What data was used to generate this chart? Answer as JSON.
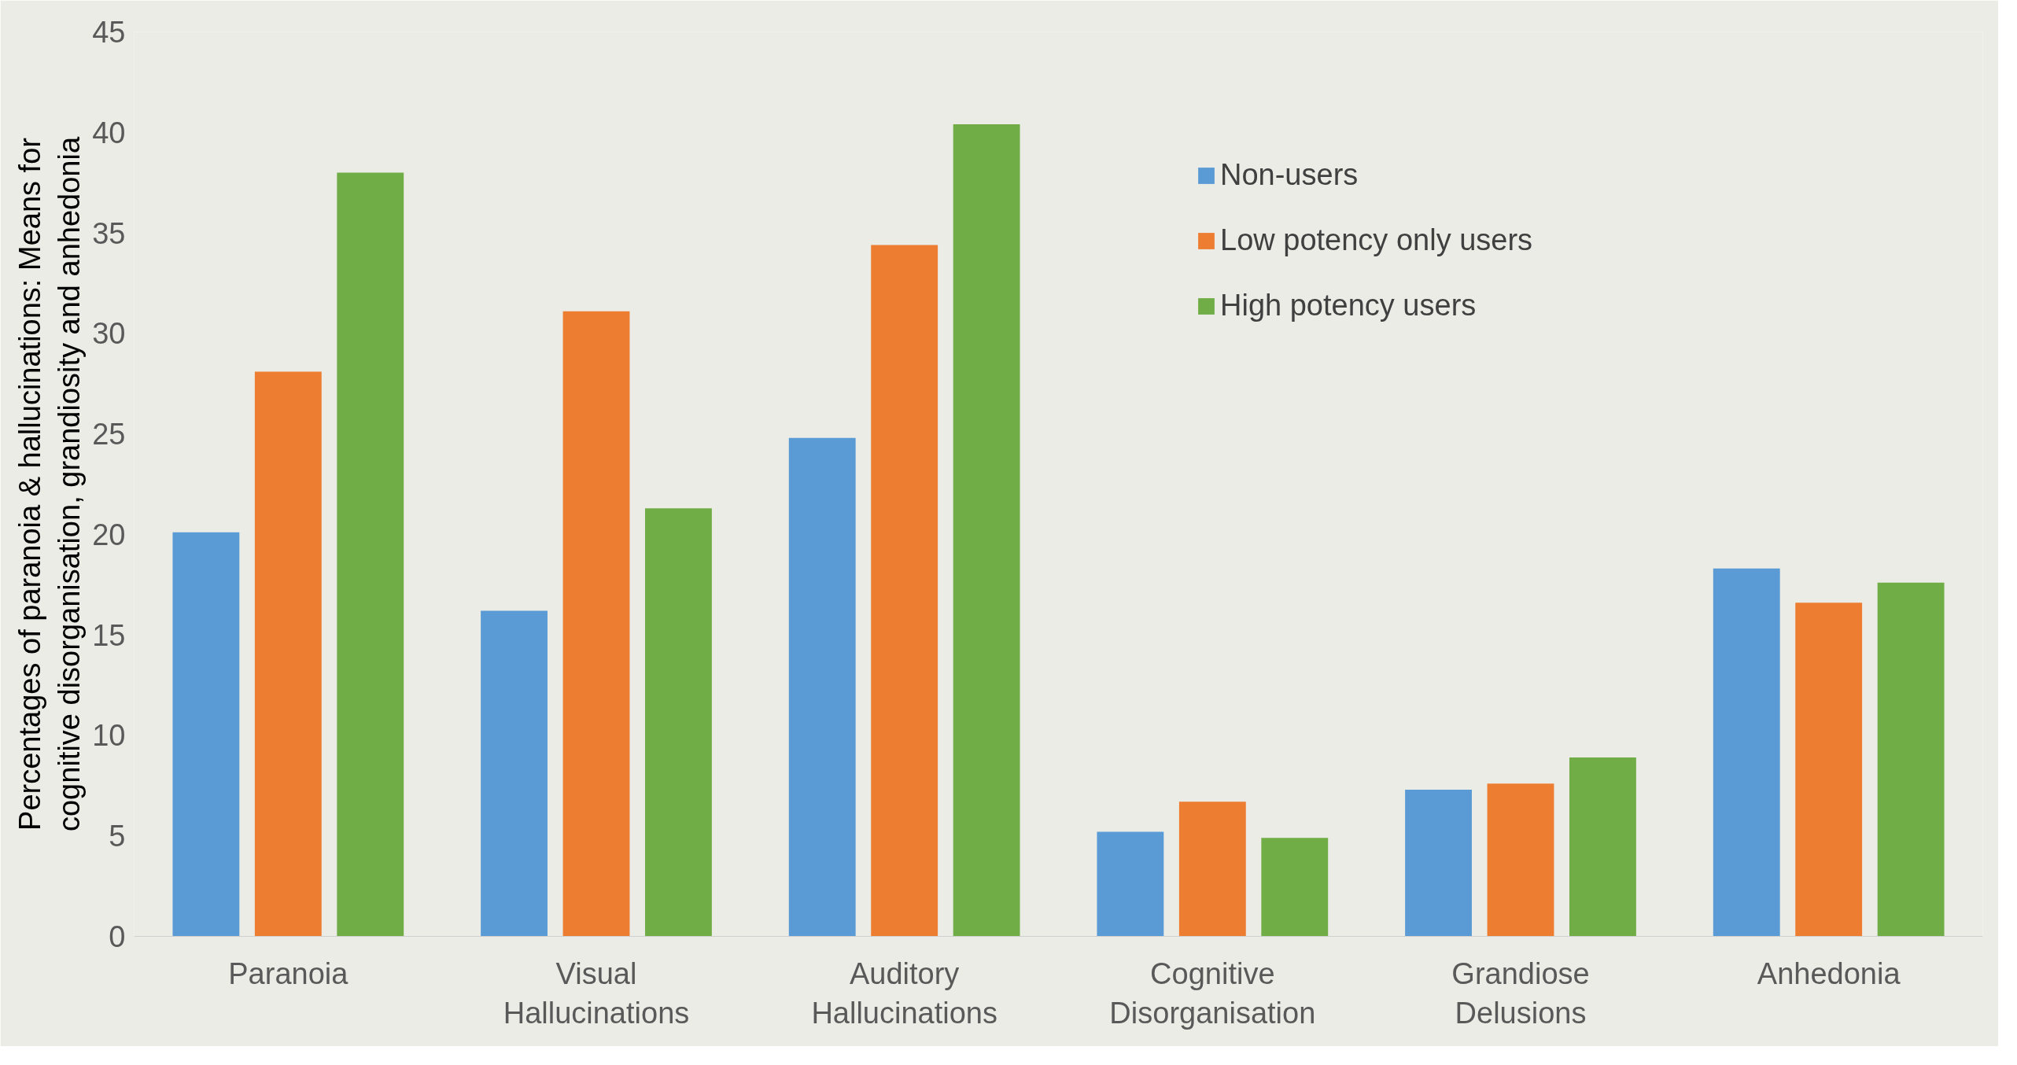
{
  "chart_data": {
    "type": "bar",
    "ylabel": "Percentages of paranoia & hallucinations: Means for cognitive disorganisation, grandiosity and anhedonia",
    "categories": [
      "Paranoia",
      "Visual Hallucinations",
      "Auditory Hallucinations",
      "Cognitive Disorganisation",
      "Grandiose Delusions",
      "Anhedonia"
    ],
    "series": [
      {
        "name": "Non-users",
        "color": "#5b9bd5",
        "values": [
          20.1,
          16.2,
          24.8,
          5.2,
          7.3,
          18.3
        ]
      },
      {
        "name": "Low potency only users",
        "color": "#ed7d31",
        "values": [
          28.1,
          31.1,
          34.4,
          6.7,
          7.6,
          16.6
        ]
      },
      {
        "name": "High potency users",
        "color": "#70ad47",
        "values": [
          38.0,
          21.3,
          40.4,
          4.9,
          8.9,
          17.6
        ]
      }
    ],
    "ylim": [
      0,
      45
    ],
    "yticks": [
      0,
      5,
      10,
      15,
      20,
      25,
      30,
      35,
      40,
      45
    ],
    "grid": false,
    "legend": "top right"
  }
}
